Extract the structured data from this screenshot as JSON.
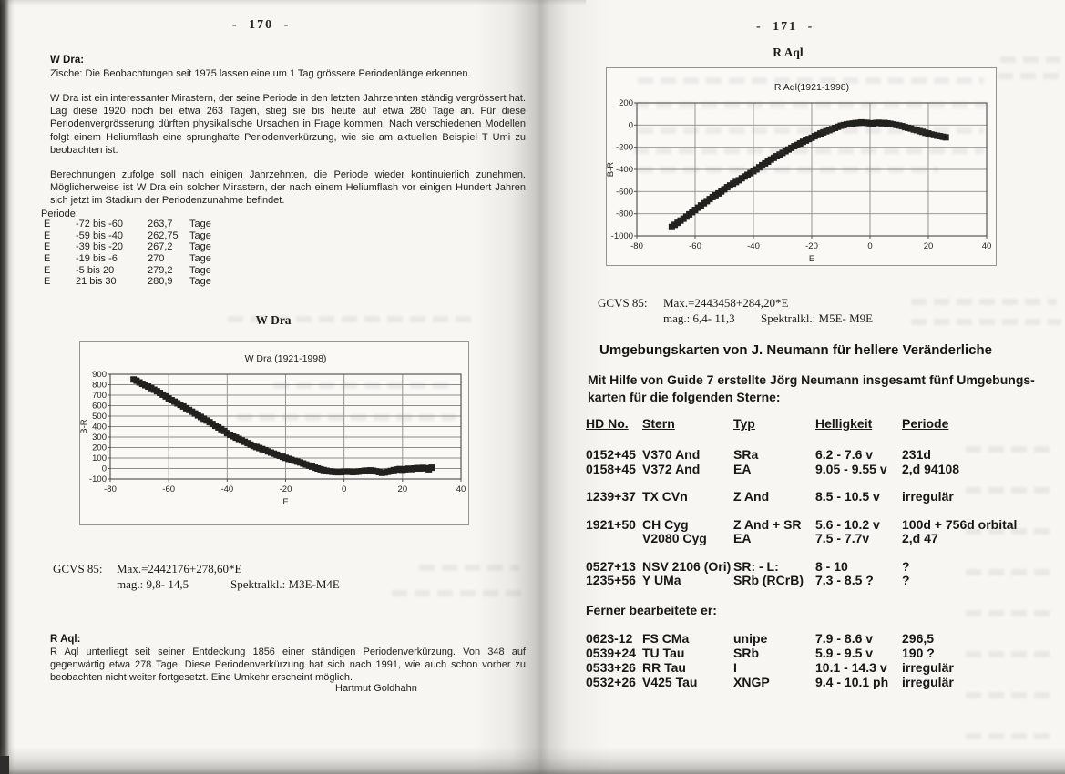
{
  "colors": {
    "paper": "#f7f6f2",
    "ink": "#1c1c1a",
    "grid": "#8f8d88"
  },
  "left_page": {
    "page_number": "- 170 -",
    "w_dra": {
      "heading": "W Dra:",
      "line1": "Zische: Die Beobachtungen seit 1975 lassen eine um 1 Tag grössere Periodenlänge erkennen.",
      "para1": "W Dra ist ein interessanter Mirastern, der seine Periode in den letzten Jahrzehnten ständig vergrössert hat. Lag diese 1920 noch bei etwa 263 Tagen, stieg sie bis heute auf etwa 280 Tage an. Für diese Periodenvergrösserung dürften physikalische Ursachen in Frage kommen. Nach verschiedenen Modellen folgt einem Heliumflash eine sprunghafte Periodenverkürzung, wie sie am aktuellen Beispiel T Umi zu beobachten ist.",
      "para2": "Berechnungen zufolge soll nach einigen Jahrzehnten, die Periode wieder kontinuierlich zunehmen. Möglicherweise ist W Dra ein solcher Mirastern, der nach einem Heliumflash vor einigen Hundert Jahren sich jetzt im Stadium der Periodenzunahme befindet.",
      "periode_label": "Periode:",
      "periods": [
        [
          "E",
          "-72 bis -60",
          "263,7",
          "Tage"
        ],
        [
          "E",
          "-59 bis -40",
          "262,75",
          "Tage"
        ],
        [
          "E",
          "-39 bis -20",
          "267,2",
          "Tage"
        ],
        [
          "E",
          "-19 bis -6",
          "270",
          "Tage"
        ],
        [
          "E",
          "-5 bis 20",
          "279,2",
          "Tage"
        ],
        [
          "E",
          "21 bis 30",
          "280,9",
          "Tage"
        ]
      ]
    },
    "gcvs": {
      "label": "GCVS 85:",
      "max_line": "Max.=2442176+278,60*E",
      "mag": "mag.: 9,8- 14,5",
      "spektral": "Spektralkl.: M3E-M4E"
    },
    "r_aql_note": {
      "heading": "R Aql:",
      "para": "R Aql unterliegt seit seiner Entdeckung 1856 einer ständigen Periodenverkürzung. Von 348 auf gegenwärtig etwa 278 Tage. Diese Periodenverkürzung hat sich nach 1991, wie auch schon vorher zu beobachten nicht weiter fortgesetzt. Eine Umkehr erscheint möglich.",
      "signature": "Hartmut Goldhahn"
    }
  },
  "right_page": {
    "page_number": "- 171 -",
    "gcvs": {
      "label": "GCVS 85:",
      "max_line": "Max.=2443458+284,20*E",
      "mag": "mag.: 6,4- 11,3",
      "spektral": "Spektralkl.: M5E- M9E"
    },
    "section": {
      "heading": "Umgebungskarten von J. Neumann für hellere Veränderliche",
      "intro_lines": [
        "Mit Hilfe von Guide 7 erstellte Jörg Neumann insgesamt fünf  Umgebungs-",
        "karten für die folgenden Sterne:"
      ],
      "table": {
        "headers": [
          "HD No.",
          "Stern",
          "Typ",
          "Helligkeit",
          "Periode"
        ],
        "groups": [
          [
            [
              "0152+45",
              "V370 And",
              "SRa",
              "6.2 - 7.6 v",
              "231d"
            ],
            [
              "0158+45",
              "V372 And",
              "EA",
              "9.05 - 9.55 v",
              "2,d 94108"
            ]
          ],
          [
            [
              "1239+37",
              "TX CVn",
              "Z And",
              "8.5 - 10.5 v",
              "irregulär"
            ]
          ],
          [
            [
              "1921+50",
              "CH Cyg",
              "Z And + SR",
              "5.6 - 10.2 v",
              "100d + 756d orbital"
            ],
            [
              "",
              "V2080 Cyg",
              "EA",
              "7.5 - 7.7v",
              "2,d 47"
            ]
          ],
          [
            [
              "0527+13",
              "NSV 2106 (Ori)",
              "SR: - L:",
              "8 - 10",
              "?"
            ],
            [
              "1235+56",
              "Y UMa",
              "SRb (RCrB)",
              "7.3 - 8.5 ?",
              "?"
            ]
          ]
        ]
      },
      "ferner_label": "Ferner bearbeitete er:",
      "ferner_rows": [
        [
          "0623-12",
          "FS CMa",
          "unipe",
          "7.9 - 8.6 v",
          "296,5"
        ],
        [
          "0539+24",
          "TU Tau",
          "SRb",
          "5.9 - 9.5 v",
          "190 ?"
        ],
        [
          "0533+26",
          "RR Tau",
          "I",
          "10.1 - 14.3 v",
          "irregulär"
        ],
        [
          "0532+26",
          "V425 Tau",
          "XNGP",
          "9.4 - 10.1 ph",
          "irregulär"
        ]
      ]
    }
  },
  "chart_data": [
    {
      "type": "scatter",
      "title": "W Dra",
      "inner_title": "W Dra (1921-1998)",
      "xlabel": "E",
      "ylabel": "B-R",
      "xlim": [
        -80,
        40
      ],
      "xstep": 20,
      "ylim": [
        -100,
        900
      ],
      "ystep": 100,
      "grid": true,
      "points": [
        [
          -72,
          850
        ],
        [
          -71,
          838
        ],
        [
          -70,
          822
        ],
        [
          -69,
          808
        ],
        [
          -68,
          795
        ],
        [
          -67,
          782
        ],
        [
          -66,
          768
        ],
        [
          -65,
          752
        ],
        [
          -64,
          738
        ],
        [
          -63,
          722
        ],
        [
          -62,
          705
        ],
        [
          -61,
          688
        ],
        [
          -60,
          668
        ],
        [
          -59,
          652
        ],
        [
          -58,
          638
        ],
        [
          -57,
          622
        ],
        [
          -56,
          608
        ],
        [
          -55,
          592
        ],
        [
          -54,
          575
        ],
        [
          -53,
          558
        ],
        [
          -52,
          542
        ],
        [
          -51,
          525
        ],
        [
          -50,
          508
        ],
        [
          -49,
          492
        ],
        [
          -48,
          475
        ],
        [
          -47,
          458
        ],
        [
          -46,
          442
        ],
        [
          -45,
          425
        ],
        [
          -44,
          408
        ],
        [
          -43,
          392
        ],
        [
          -42,
          375
        ],
        [
          -41,
          358
        ],
        [
          -40,
          338
        ],
        [
          -39,
          322
        ],
        [
          -38,
          308
        ],
        [
          -37,
          295
        ],
        [
          -36,
          282
        ],
        [
          -35,
          268
        ],
        [
          -34,
          255
        ],
        [
          -33,
          242
        ],
        [
          -32,
          228
        ],
        [
          -31,
          215
        ],
        [
          -30,
          205
        ],
        [
          -29,
          195
        ],
        [
          -28,
          185
        ],
        [
          -27,
          175
        ],
        [
          -26,
          163
        ],
        [
          -25,
          152
        ],
        [
          -24,
          142
        ],
        [
          -23,
          132
        ],
        [
          -22,
          122
        ],
        [
          -21,
          112
        ],
        [
          -20,
          102
        ],
        [
          -19,
          92
        ],
        [
          -18,
          82
        ],
        [
          -17,
          74
        ],
        [
          -16,
          66
        ],
        [
          -15,
          58
        ],
        [
          -14,
          48
        ],
        [
          -13,
          38
        ],
        [
          -12,
          28
        ],
        [
          -11,
          18
        ],
        [
          -10,
          8
        ],
        [
          -9,
          0
        ],
        [
          -8,
          -8
        ],
        [
          -7,
          -15
        ],
        [
          -6,
          -22
        ],
        [
          -5,
          -28
        ],
        [
          -4,
          -32
        ],
        [
          -3,
          -35
        ],
        [
          -2,
          -36
        ],
        [
          -1,
          -35
        ],
        [
          0,
          -32
        ],
        [
          1,
          -30
        ],
        [
          2,
          -32
        ],
        [
          3,
          -35
        ],
        [
          4,
          -33
        ],
        [
          5,
          -30
        ],
        [
          6,
          -26
        ],
        [
          7,
          -22
        ],
        [
          8,
          -20
        ],
        [
          9,
          -18
        ],
        [
          10,
          -22
        ],
        [
          11,
          -28
        ],
        [
          12,
          -35
        ],
        [
          13,
          -42
        ],
        [
          14,
          -38
        ],
        [
          15,
          -32
        ],
        [
          16,
          -24
        ],
        [
          17,
          -16
        ],
        [
          18,
          -10
        ],
        [
          19,
          -6
        ],
        [
          20,
          -12
        ],
        [
          21,
          -8
        ],
        [
          22,
          -2
        ],
        [
          23,
          -6
        ],
        [
          24,
          0
        ],
        [
          25,
          4
        ],
        [
          26,
          0
        ],
        [
          27,
          6
        ],
        [
          28,
          2
        ],
        [
          29,
          -8
        ],
        [
          30,
          8
        ]
      ]
    },
    {
      "type": "scatter",
      "title": "R Aql",
      "inner_title": "R Aql(1921-1998)",
      "xlabel": "E",
      "ylabel": "B-R",
      "xlim": [
        -80,
        40
      ],
      "xstep": 20,
      "ylim": [
        -1000,
        200
      ],
      "ystep": 200,
      "grid": true,
      "points": [
        [
          -68,
          -920
        ],
        [
          -67,
          -900
        ],
        [
          -66,
          -882
        ],
        [
          -65,
          -862
        ],
        [
          -64,
          -845
        ],
        [
          -63,
          -826
        ],
        [
          -62,
          -806
        ],
        [
          -61,
          -786
        ],
        [
          -60,
          -766
        ],
        [
          -59,
          -746
        ],
        [
          -58,
          -726
        ],
        [
          -57,
          -706
        ],
        [
          -56,
          -687
        ],
        [
          -55,
          -668
        ],
        [
          -54,
          -650
        ],
        [
          -53,
          -633
        ],
        [
          -52,
          -617
        ],
        [
          -51,
          -599
        ],
        [
          -50,
          -580
        ],
        [
          -49,
          -561
        ],
        [
          -48,
          -545
        ],
        [
          -47,
          -529
        ],
        [
          -46,
          -514
        ],
        [
          -45,
          -498
        ],
        [
          -44,
          -480
        ],
        [
          -43,
          -464
        ],
        [
          -42,
          -449
        ],
        [
          -41,
          -434
        ],
        [
          -40,
          -416
        ],
        [
          -39,
          -400
        ],
        [
          -38,
          -381
        ],
        [
          -37,
          -362
        ],
        [
          -36,
          -346
        ],
        [
          -35,
          -330
        ],
        [
          -34,
          -311
        ],
        [
          -33,
          -296
        ],
        [
          -32,
          -281
        ],
        [
          -31,
          -266
        ],
        [
          -30,
          -251
        ],
        [
          -29,
          -236
        ],
        [
          -28,
          -221
        ],
        [
          -27,
          -206
        ],
        [
          -26,
          -191
        ],
        [
          -25,
          -180
        ],
        [
          -24,
          -166
        ],
        [
          -23,
          -151
        ],
        [
          -22,
          -140
        ],
        [
          -21,
          -126
        ],
        [
          -20,
          -115
        ],
        [
          -19,
          -101
        ],
        [
          -18,
          -90
        ],
        [
          -17,
          -76
        ],
        [
          -16,
          -66
        ],
        [
          -15,
          -56
        ],
        [
          -14,
          -46
        ],
        [
          -13,
          -36
        ],
        [
          -12,
          -26
        ],
        [
          -11,
          -16
        ],
        [
          -10,
          -6
        ],
        [
          -9,
          0
        ],
        [
          -8,
          6
        ],
        [
          -7,
          10
        ],
        [
          -6,
          14
        ],
        [
          -5,
          18
        ],
        [
          -4,
          20
        ],
        [
          -3,
          24
        ],
        [
          -2,
          21
        ],
        [
          -1,
          20
        ],
        [
          0,
          16
        ],
        [
          1,
          15
        ],
        [
          2,
          19
        ],
        [
          3,
          21
        ],
        [
          4,
          16
        ],
        [
          5,
          19
        ],
        [
          6,
          15
        ],
        [
          7,
          11
        ],
        [
          8,
          6
        ],
        [
          9,
          1
        ],
        [
          10,
          -4
        ],
        [
          11,
          -10
        ],
        [
          12,
          -19
        ],
        [
          13,
          -25
        ],
        [
          14,
          -31
        ],
        [
          15,
          -40
        ],
        [
          16,
          -46
        ],
        [
          17,
          -55
        ],
        [
          18,
          -61
        ],
        [
          19,
          -70
        ],
        [
          20,
          -76
        ],
        [
          21,
          -85
        ],
        [
          22,
          -90
        ],
        [
          23,
          -96
        ],
        [
          24,
          -100
        ],
        [
          25,
          -106
        ],
        [
          26,
          -111
        ]
      ]
    }
  ]
}
